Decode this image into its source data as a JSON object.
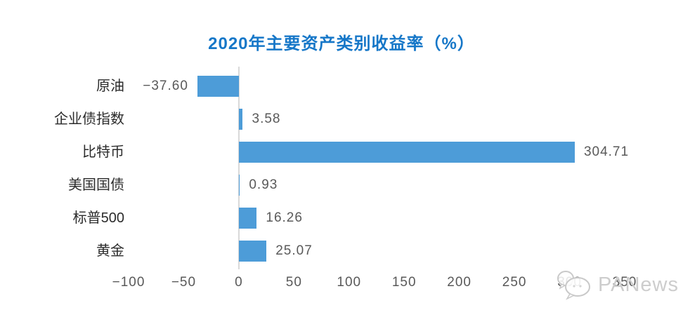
{
  "page": {
    "background": "#ffffff"
  },
  "chart_data": {
    "type": "bar",
    "orientation": "horizontal",
    "title": "2020年主要资产类别收益率（%）",
    "categories": [
      "原油",
      "企业债指数",
      "比特币",
      "美国国债",
      "标普500",
      "黄金"
    ],
    "values": [
      -37.6,
      3.58,
      304.71,
      0.93,
      16.26,
      25.07
    ],
    "value_labels": [
      "−37.60",
      "3.58",
      "304.71",
      "0.93",
      "16.26",
      "25.07"
    ],
    "xlim": [
      -100,
      350
    ],
    "x_ticks": [
      -100,
      -50,
      0,
      50,
      100,
      150,
      200,
      250,
      300,
      350
    ],
    "x_tick_labels": [
      "−100",
      "−50",
      "0",
      "50",
      "100",
      "150",
      "200",
      "250",
      "300",
      "350"
    ],
    "grid": false,
    "legend": "none",
    "bar_color": "#4D9CD8",
    "title_color": "#1677C8",
    "axis_line_color": "#D9D9D9",
    "category_label_color": "#2B2B2B",
    "value_label_color": "#595959",
    "tick_label_color": "#595959"
  },
  "watermark": {
    "text": "PANews",
    "icon": "chat-bubbles-icon",
    "color": "#CDCDCD"
  }
}
